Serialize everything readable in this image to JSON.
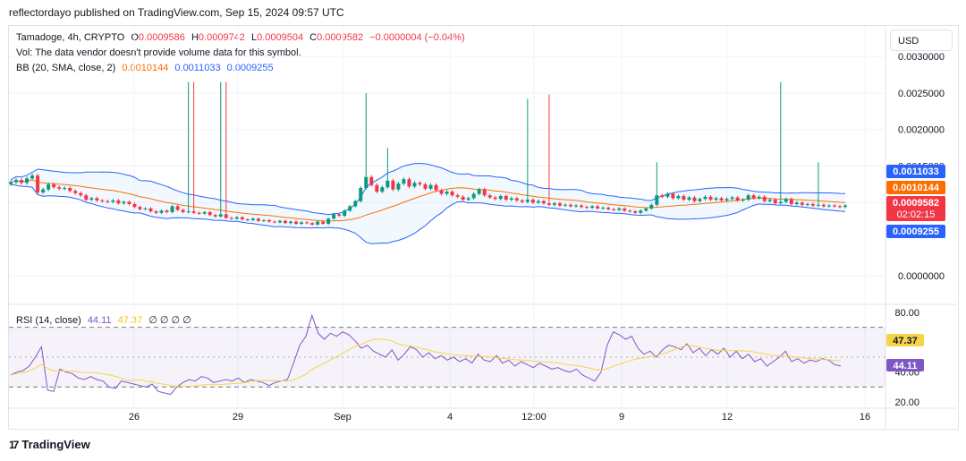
{
  "header": {
    "published": "reflectordayo published on TradingView.com, Sep 15, 2024 09:57 UTC"
  },
  "legend": {
    "symbol": "Tamadoge, 4h, CRYPTO",
    "o_label": "O",
    "o_value": "0.0009586",
    "h_label": "H",
    "h_value": "0.0009742",
    "l_label": "L",
    "l_value": "0.0009504",
    "c_label": "C",
    "c_value": "0.0009582",
    "change": "−0.0000004 (−0.04%)",
    "vol": "Vol: The data vendor doesn't provide volume data for this symbol.",
    "bb_label": "BB (20, SMA, close, 2)",
    "bb_basis": "0.0010144",
    "bb_upper": "0.0011033",
    "bb_lower": "0.0009255",
    "rsi_label": "RSI (14, close)",
    "rsi_value": "44.11",
    "rsi_ma": "47.37",
    "rsi_extra": "∅ ∅ ∅ ∅"
  },
  "currency": "USD",
  "colors": {
    "up": "#089981",
    "down": "#f23645",
    "basis": "#ff6d00",
    "band": "#2962ff",
    "rsi": "#7e57c2",
    "rsi_ma": "#f5d547"
  },
  "chart_data": {
    "type": "candlestick",
    "price_axis": {
      "ticks": [
        "0.0030000",
        "0.0025000",
        "0.0020000",
        "0.0015000",
        "0.0010000",
        "0.0000000"
      ],
      "ylim": [
        0,
        0.003
      ]
    },
    "time_axis": {
      "ticks": [
        "26",
        "29",
        "Sep",
        "4",
        "12:00",
        "9",
        "12",
        "16"
      ]
    },
    "price_tags": [
      {
        "value": "0.0011033",
        "color": "#2962ff"
      },
      {
        "value": "0.0010144",
        "color": "#ff6d00"
      },
      {
        "value": "0.0009582",
        "sub": "02:02:15",
        "color": "#f23645"
      },
      {
        "value": "0.0009255",
        "color": "#2962ff"
      }
    ],
    "rsi_axis": {
      "ticks": [
        "80.00",
        "60.00",
        "40.00",
        "20.00"
      ],
      "ylim": [
        20,
        80
      ],
      "bands": [
        70,
        30
      ],
      "mid": 50
    },
    "rsi_tags": [
      {
        "value": "47.37",
        "color": "#f5d547"
      },
      {
        "value": "44.11",
        "color": "#7e57c2"
      }
    ],
    "close_series": [
      0.00128,
      0.00131,
      0.00127,
      0.00133,
      0.00137,
      0.00114,
      0.00118,
      0.00125,
      0.00121,
      0.00119,
      0.0012,
      0.00116,
      0.00113,
      0.0011,
      0.00104,
      0.00106,
      0.00103,
      0.00102,
      0.00101,
      0.00103,
      0.00099,
      0.00101,
      0.00098,
      0.00094,
      0.00091,
      0.00092,
      0.00088,
      0.00086,
      0.00089,
      0.00087,
      0.00095,
      0.0009,
      0.00087,
      0.00088,
      0.00086,
      0.00085,
      0.00087,
      0.00083,
      0.00081,
      0.00084,
      0.00079,
      0.00078,
      0.0008,
      0.00077,
      0.00076,
      0.00078,
      0.00075,
      0.00076,
      0.00074,
      0.00073,
      0.00075,
      0.00072,
      0.00074,
      0.00071,
      0.00073,
      0.00072,
      0.0007,
      0.00074,
      0.00071,
      0.00078,
      0.00084,
      0.00082,
      0.00089,
      0.00095,
      0.00102,
      0.0012,
      0.00135,
      0.00124,
      0.00115,
      0.00121,
      0.0013,
      0.00118,
      0.00126,
      0.00132,
      0.00122,
      0.00127,
      0.00125,
      0.00119,
      0.00124,
      0.00117,
      0.00112,
      0.00115,
      0.0011,
      0.00108,
      0.00104,
      0.00106,
      0.00112,
      0.00118,
      0.0011,
      0.00107,
      0.00105,
      0.00109,
      0.00104,
      0.00106,
      0.00103,
      0.00101,
      0.00104,
      0.001,
      0.00102,
      0.00099,
      0.00097,
      0.00099,
      0.00096,
      0.00097,
      0.00095,
      0.00096,
      0.00094,
      0.00093,
      0.00095,
      0.00092,
      0.00093,
      0.00091,
      0.0009,
      0.00092,
      0.00089,
      0.00088,
      0.00086,
      0.00089,
      0.00092,
      0.00097,
      0.0011,
      0.00108,
      0.00112,
      0.00106,
      0.00109,
      0.00104,
      0.00107,
      0.00102,
      0.00105,
      0.00108,
      0.00104,
      0.00106,
      0.00103,
      0.00105,
      0.00107,
      0.00103,
      0.00104,
      0.0011,
      0.00106,
      0.00108,
      0.00102,
      0.00104,
      0.00099,
      0.00101,
      0.00105,
      0.00098,
      0.001,
      0.00097,
      0.00098,
      0.00096,
      0.00097,
      0.00095,
      0.00096,
      0.00095,
      0.00094,
      0.00096
    ],
    "spikes": [
      {
        "i": 33,
        "high": 0.00265
      },
      {
        "i": 34,
        "high": 0.00265
      },
      {
        "i": 39,
        "high": 0.00265
      },
      {
        "i": 40,
        "high": 0.00265
      },
      {
        "i": 66,
        "high": 0.0025
      },
      {
        "i": 70,
        "high": 0.00175
      },
      {
        "i": 96,
        "high": 0.00242
      },
      {
        "i": 100,
        "high": 0.00248
      },
      {
        "i": 120,
        "high": 0.00155
      },
      {
        "i": 143,
        "high": 0.00265
      },
      {
        "i": 150,
        "high": 0.00155
      }
    ],
    "rsi_series": [
      38,
      40,
      41,
      44,
      50,
      57,
      28,
      27,
      42,
      40,
      39,
      36,
      35,
      37,
      35,
      34,
      30,
      29,
      34,
      33,
      32,
      31,
      30,
      32,
      27,
      26,
      25,
      30,
      33,
      35,
      34,
      37,
      36,
      33,
      34,
      35,
      34,
      36,
      33,
      35,
      34,
      33,
      31,
      33,
      34,
      35,
      46,
      58,
      64,
      78,
      66,
      62,
      66,
      64,
      67,
      65,
      61,
      56,
      58,
      54,
      52,
      50,
      55,
      48,
      52,
      57,
      55,
      50,
      53,
      49,
      51,
      48,
      50,
      47,
      49,
      46,
      52,
      48,
      47,
      51,
      46,
      48,
      44,
      47,
      45,
      43,
      46,
      44,
      42,
      43,
      41,
      40,
      42,
      38,
      36,
      34,
      40,
      58,
      67,
      65,
      62,
      64,
      56,
      52,
      54,
      50,
      55,
      58,
      57,
      55,
      59,
      53,
      56,
      51,
      55,
      52,
      56,
      50,
      54,
      49,
      52,
      47,
      49,
      44,
      47,
      50,
      54,
      47,
      49,
      46,
      48,
      47,
      49,
      48,
      45,
      44
    ]
  },
  "brand": {
    "name": "TradingView",
    "mark": "17"
  }
}
